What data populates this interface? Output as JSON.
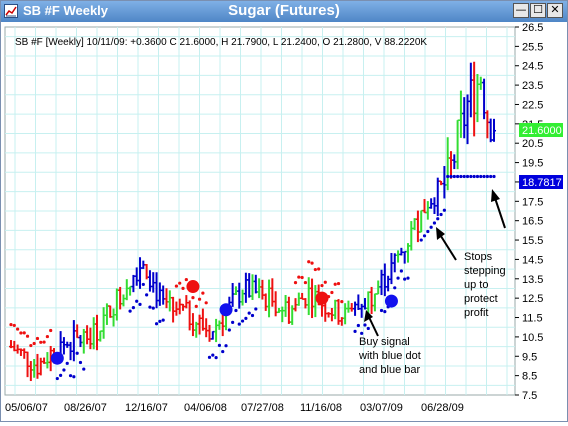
{
  "window": {
    "title": "SB #F Weekly",
    "chart_title": "Sugar (Futures)",
    "minimize_glyph": "—",
    "maximize_glyph": "☐",
    "close_glyph": "✕"
  },
  "info_line": "SB #F [Weekly] 10/11/09: +0.3600 C 21.6000, H 21.7900, L 21.2400, O 21.2800, V 88.2220K",
  "badges": {
    "last_price": "21.6000",
    "stop_level": "18.7817"
  },
  "annotations": {
    "buy_signal": [
      "Buy signal",
      "with blue dot",
      "and blue bar"
    ],
    "stops": [
      "Stops",
      "stepping",
      "up to",
      "protect",
      "profit"
    ]
  },
  "colors": {
    "up_bar": "#33dd33",
    "down_bar": "#ee1111",
    "signal_bar": "#0000cc",
    "grid": "#c7f0f0",
    "price_badge": "#33ee33",
    "stop_badge": "#0000dd"
  },
  "chart_data": {
    "type": "ohlc",
    "title": "Sugar (Futures)",
    "x_tick_labels": [
      "05/06/07",
      "08/26/07",
      "12/16/07",
      "04/06/08",
      "07/27/08",
      "11/16/08",
      "03/07/09",
      "06/28/09"
    ],
    "y_tick_labels": [
      "26.5",
      "25.5",
      "24.5",
      "23.5",
      "22.5",
      "21.5",
      "20.5",
      "19.5",
      "18.5",
      "17.5",
      "16.5",
      "15.5",
      "14.5",
      "13.5",
      "12.5",
      "11.5",
      "10.5",
      "9.5",
      "8.5",
      "7.5"
    ],
    "ylim": [
      7.5,
      26.5
    ],
    "grid": true,
    "bars_weekly_approx": {
      "note": "",
      "keypoints": [
        [
          0,
          10.0
        ],
        [
          8,
          9.0
        ],
        [
          14,
          10.0
        ],
        [
          20,
          10.3
        ],
        [
          26,
          10.8
        ],
        [
          32,
          12.5
        ],
        [
          40,
          14.5
        ],
        [
          46,
          12.0
        ],
        [
          52,
          11.8
        ],
        [
          60,
          10.8
        ],
        [
          64,
          11.5
        ],
        [
          70,
          13.0
        ],
        [
          78,
          12.5
        ],
        [
          84,
          11.8
        ],
        [
          90,
          12.8
        ],
        [
          96,
          12.0
        ],
        [
          102,
          11.5
        ],
        [
          108,
          12.5
        ],
        [
          114,
          13.8
        ],
        [
          120,
          15.5
        ],
        [
          126,
          17.5
        ],
        [
          132,
          18.5
        ],
        [
          138,
          22.5
        ],
        [
          142,
          24.0
        ],
        [
          144,
          22.0
        ],
        [
          146,
          21.6
        ]
      ]
    },
    "blue_dots": [
      {
        "week": 14,
        "price": 9.4
      },
      {
        "week": 65,
        "price": 11.9
      },
      {
        "week": 115,
        "price": 12.35
      }
    ],
    "red_dots": [
      {
        "week": 55,
        "price": 13.1
      },
      {
        "week": 94,
        "price": 12.5
      }
    ],
    "last_close": 21.6,
    "stop_level": 18.7817
  }
}
